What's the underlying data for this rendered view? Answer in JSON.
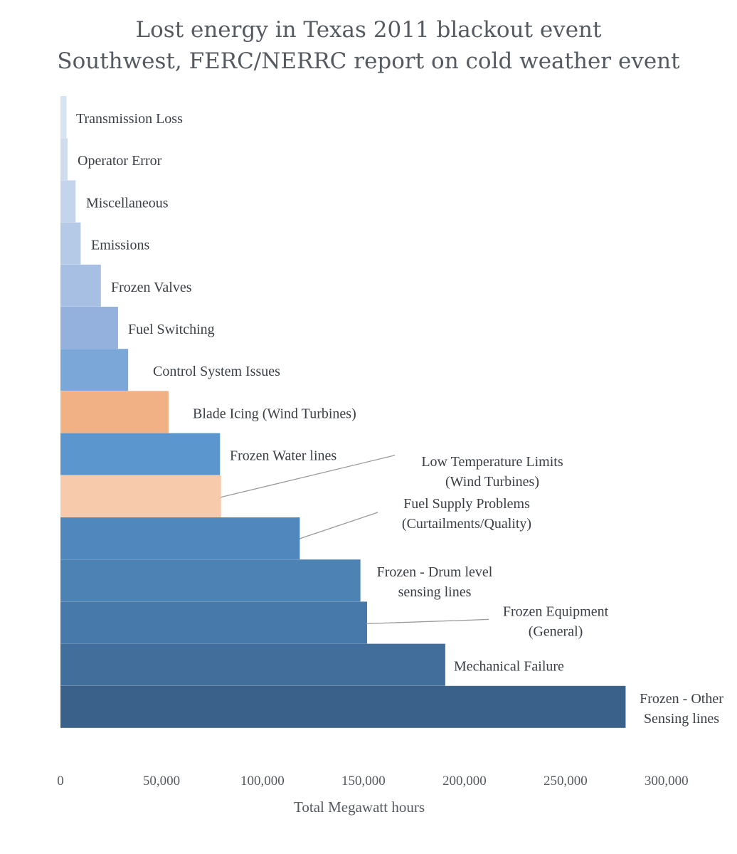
{
  "chart_data": {
    "type": "bar",
    "orientation": "horizontal",
    "title": "Lost energy in Texas 2011 blackout event",
    "subtitle": "Southwest, FERC/NERRC report on cold weather event",
    "xlabel": "Total Megawatt hours",
    "ylabel": "",
    "xlim": [
      0,
      300000
    ],
    "xticks": [
      "0",
      "50,000",
      "100,000",
      "150,000",
      "200,000",
      "250,000",
      "300,000"
    ],
    "grid": false,
    "legend": "none",
    "categories": [
      [
        "Transmission Loss"
      ],
      [
        "Operator Error"
      ],
      [
        "Miscellaneous"
      ],
      [
        "Emissions"
      ],
      [
        "Frozen Valves"
      ],
      [
        "Fuel Switching"
      ],
      [
        "Control System Issues"
      ],
      [
        "Blade Icing (Wind Turbines)"
      ],
      [
        "Frozen Water lines"
      ],
      [
        "Low Temperature Limits",
        "(Wind Turbines)"
      ],
      [
        "Fuel Supply Problems",
        "(Curtailments/Quality)"
      ],
      [
        "Frozen - Drum level",
        "sensing lines"
      ],
      [
        "Frozen Equipment",
        "(General)"
      ],
      [
        "Mechanical Failure"
      ],
      [
        "Frozen - Other",
        "Sensing lines"
      ]
    ],
    "values": [
      3000,
      3500,
      7500,
      10000,
      20000,
      28500,
      33500,
      53500,
      79000,
      79500,
      118500,
      148500,
      151800,
      190500,
      279800
    ],
    "colors": [
      "#d9e4f3",
      "#cfdcf0",
      "#c3d4ec",
      "#b5cae7",
      "#a6bfe3",
      "#93b1dc",
      "#7aa7d8",
      "#f2b184",
      "#5b97ce",
      "#f7caab",
      "#5087bd",
      "#4d82b5",
      "#4779ab",
      "#416e9a",
      "#3a6189"
    ]
  }
}
